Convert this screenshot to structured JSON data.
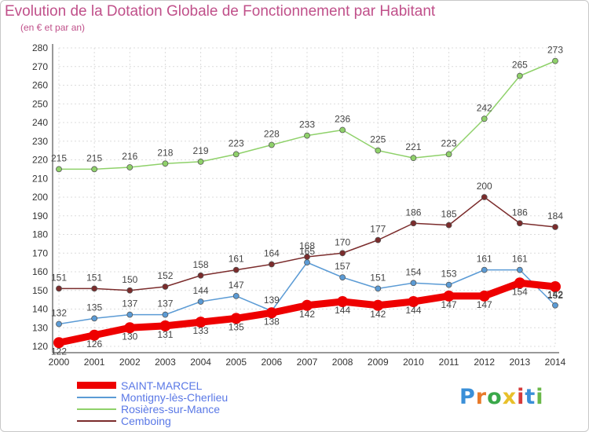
{
  "header": {
    "title": "Evolution de la Dotation Globale de Fonctionnement par Habitant",
    "subtitle": "(en € et par an)"
  },
  "logo": {
    "text": "Proxiti",
    "colors": [
      "#3a8fd8",
      "#e87a2a",
      "#3aa84a",
      "#e8c02a",
      "#d63a3a",
      "#3a8fd8",
      "#6ab84a"
    ]
  },
  "chart_data": {
    "type": "line",
    "x": [
      "2000",
      "2001",
      "2002",
      "2003",
      "2004",
      "2005",
      "2006",
      "2007",
      "2008",
      "2009",
      "2010",
      "2011",
      "2012",
      "2013",
      "2014"
    ],
    "ylim": [
      120,
      280
    ],
    "yticks": [
      120,
      130,
      140,
      150,
      160,
      170,
      180,
      190,
      200,
      210,
      220,
      230,
      240,
      250,
      260,
      270,
      280
    ],
    "grid": true,
    "legend_position": "bottom-left",
    "series": [
      {
        "name": "SAINT-MARCEL",
        "color": "#ee0000",
        "values": [
          122,
          126,
          130,
          131,
          133,
          135,
          138,
          142,
          144,
          142,
          144,
          147,
          147,
          154,
          152
        ]
      },
      {
        "name": "Montigny-lès-Cherlieu",
        "color": "#5b9bd5",
        "values": [
          132,
          135,
          137,
          137,
          144,
          147,
          139,
          165,
          157,
          151,
          154,
          153,
          161,
          161,
          142
        ]
      },
      {
        "name": "Rosières-sur-Mance",
        "color": "#8fd16a",
        "values": [
          215,
          215,
          216,
          218,
          219,
          223,
          228,
          233,
          236,
          225,
          221,
          223,
          242,
          265,
          273
        ]
      },
      {
        "name": "Cemboing",
        "color": "#7b2c2c",
        "values": [
          151,
          151,
          150,
          152,
          158,
          161,
          164,
          168,
          170,
          177,
          186,
          185,
          200,
          186,
          184
        ]
      }
    ]
  }
}
